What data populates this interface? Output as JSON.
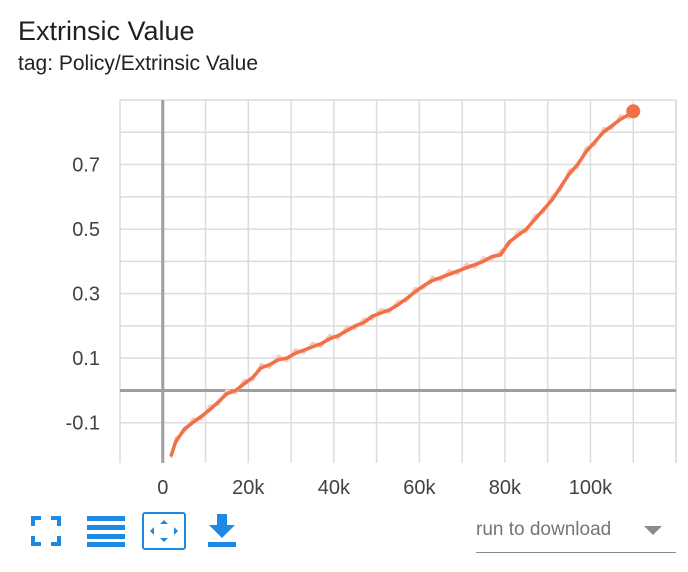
{
  "card": {
    "title": "Extrinsic Value",
    "subtitle": "tag: Policy/Extrinsic Value"
  },
  "toolbar": {
    "icons": [
      "fullscreen-icon",
      "toggle-y-log-icon",
      "fit-domain-icon",
      "download-icon"
    ]
  },
  "download": {
    "label": "run to download"
  },
  "colors": {
    "series": "#f07048",
    "series_raw": "#f8c8b8",
    "grid": "#dcdcdc",
    "zero_axis": "#9e9e9e",
    "icons": "#1e88e5"
  },
  "chart_data": {
    "type": "line",
    "title": "Extrinsic Value",
    "subtitle": "tag: Policy/Extrinsic Value",
    "xlabel": "",
    "ylabel": "",
    "xlim": [
      -10000,
      120000
    ],
    "ylim": [
      -0.2,
      0.9
    ],
    "x_ticks": [
      0,
      20000,
      40000,
      60000,
      80000,
      100000
    ],
    "x_tick_labels": [
      "0",
      "20k",
      "40k",
      "60k",
      "80k",
      "100k"
    ],
    "y_ticks": [
      -0.1,
      0.1,
      0.3,
      0.5,
      0.7
    ],
    "y_tick_labels": [
      "-0.1",
      "0.1",
      "0.3",
      "0.5",
      "0.7"
    ],
    "grid": true,
    "series": [
      {
        "smoothed": true,
        "x": [
          2000,
          3000,
          5000,
          7000,
          9000,
          11000,
          13000,
          15000,
          17000,
          19000,
          21000,
          23000,
          25000,
          27000,
          29000,
          31000,
          33000,
          35000,
          37000,
          39000,
          41000,
          43000,
          45000,
          47000,
          49000,
          51000,
          53000,
          55000,
          57000,
          59000,
          61000,
          63000,
          65000,
          67000,
          69000,
          71000,
          73000,
          75000,
          77000,
          79000,
          81000,
          83000,
          85000,
          87000,
          89000,
          91000,
          93000,
          95000,
          97000,
          99000,
          101000,
          103000,
          105000,
          107000,
          109000,
          110000
        ],
        "y": [
          -0.2,
          -0.16,
          -0.12,
          -0.1,
          -0.08,
          -0.06,
          -0.035,
          -0.01,
          0.0,
          0.02,
          0.04,
          0.07,
          0.08,
          0.095,
          0.1,
          0.115,
          0.125,
          0.135,
          0.145,
          0.16,
          0.17,
          0.185,
          0.2,
          0.21,
          0.23,
          0.24,
          0.25,
          0.265,
          0.285,
          0.305,
          0.325,
          0.34,
          0.35,
          0.36,
          0.37,
          0.38,
          0.39,
          0.4,
          0.415,
          0.42,
          0.46,
          0.48,
          0.5,
          0.53,
          0.56,
          0.59,
          0.63,
          0.67,
          0.7,
          0.74,
          0.77,
          0.8,
          0.82,
          0.84,
          0.855,
          0.865
        ]
      }
    ]
  }
}
